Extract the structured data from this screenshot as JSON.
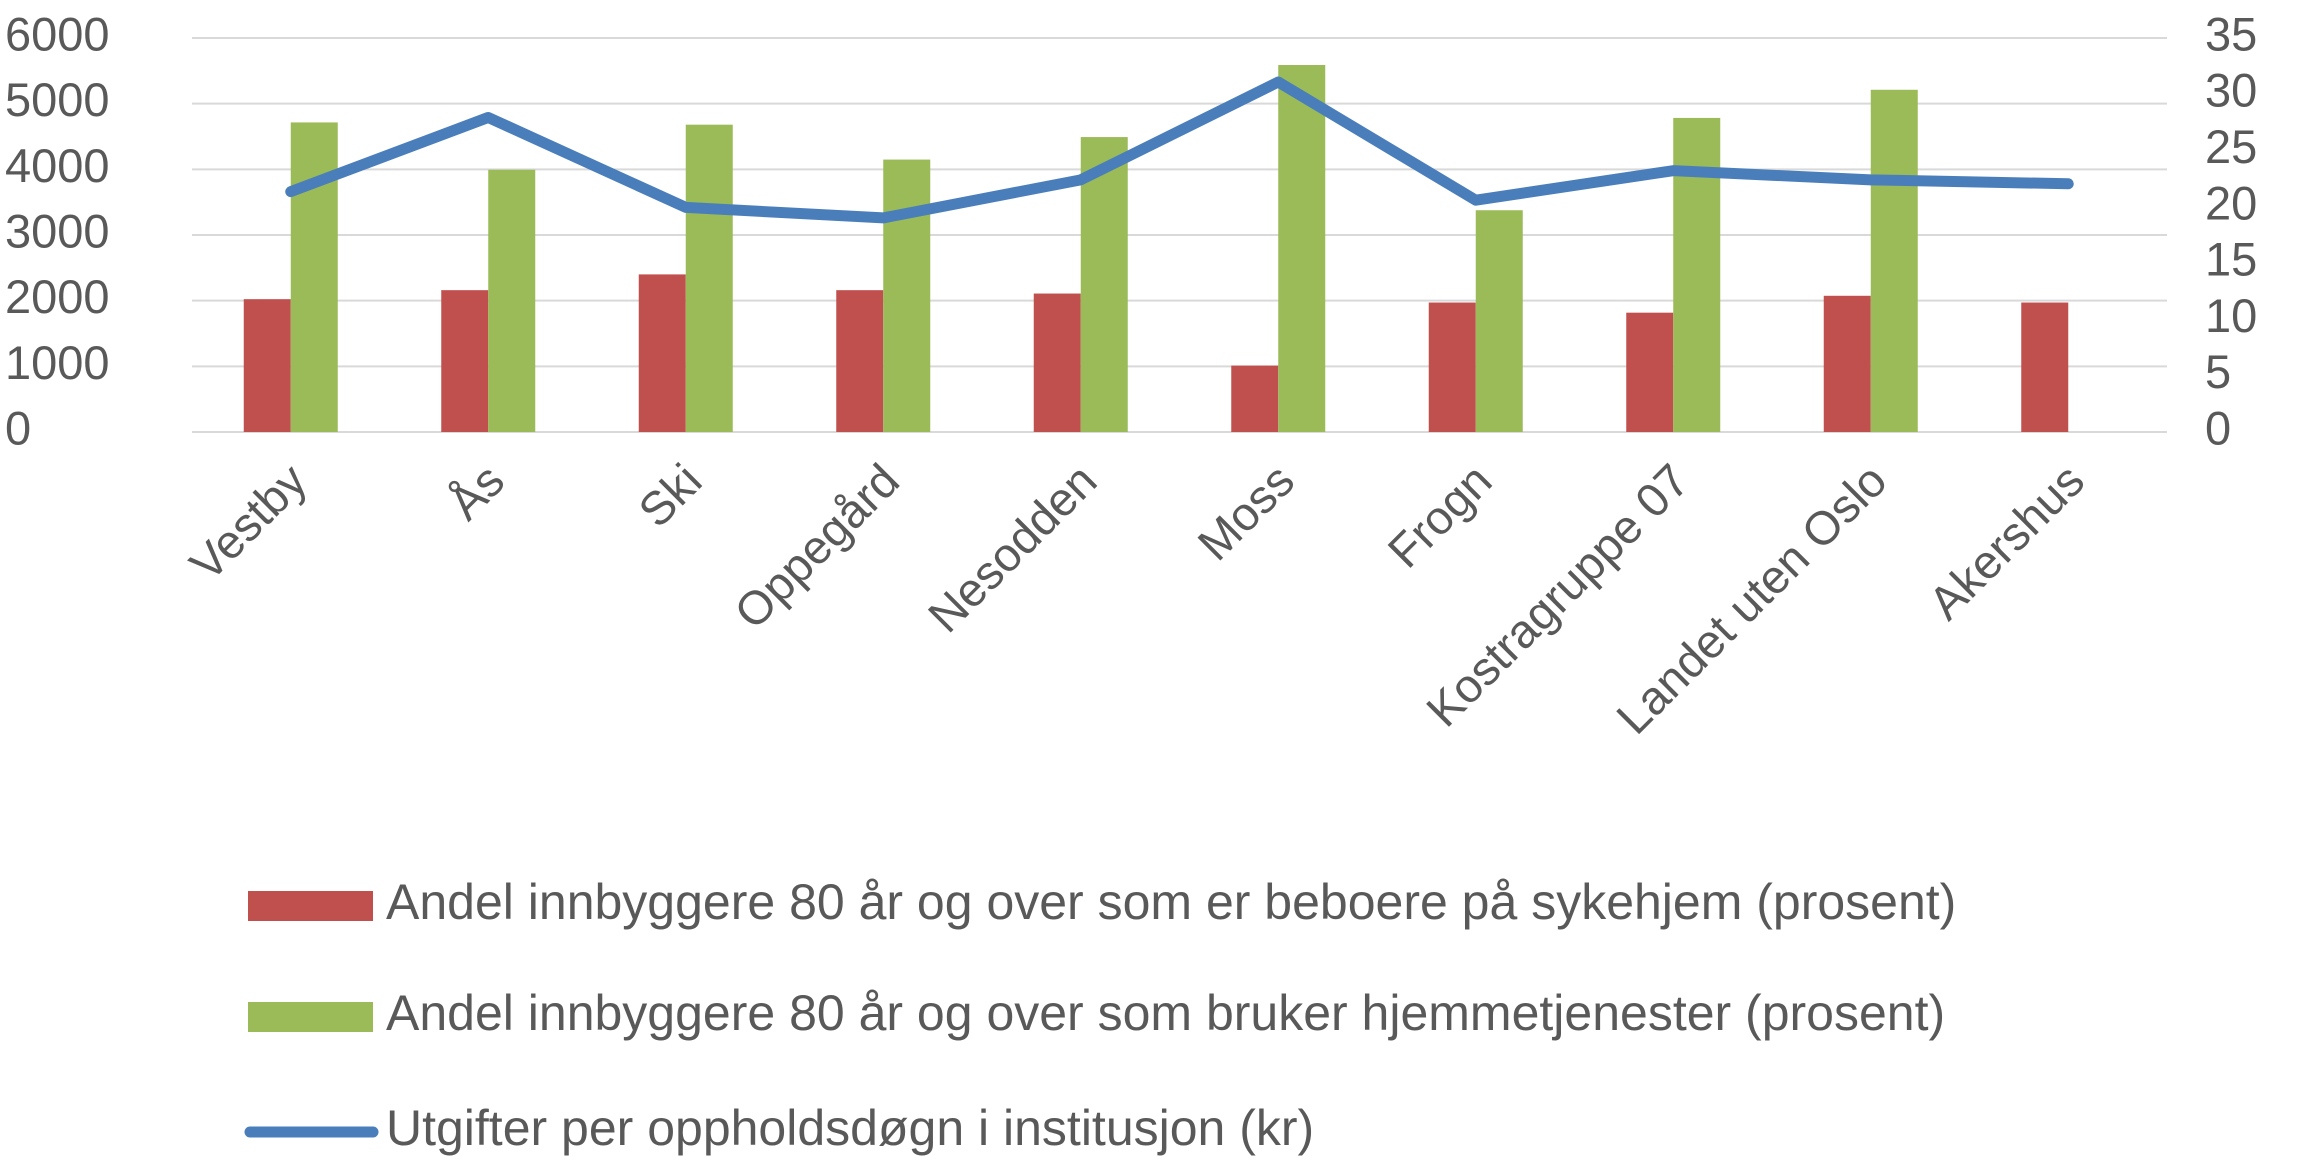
{
  "chart_data": {
    "type": "bar_line",
    "categories": [
      "Vestby",
      "Ås",
      "Ski",
      "Oppegård",
      "Nesodden",
      "Moss",
      "Frogn",
      "Kostragruppe 07",
      "Landet uten Oslo",
      "Akershus"
    ],
    "series": [
      {
        "name": "Andel innbyggere 80 år og over som er beboere på sykehjem (prosent)",
        "color": "#c0504d",
        "type": "bar",
        "axis": "y2",
        "values": [
          11.8,
          12.6,
          14.0,
          12.6,
          12.3,
          5.9,
          11.5,
          10.6,
          12.1,
          11.5
        ]
      },
      {
        "name": "Andel innbyggere 80 år og over som bruker hjemmetjenester (prosent)",
        "color": "#9bbb59",
        "type": "bar",
        "axis": "y2",
        "values": [
          27.5,
          23.3,
          27.3,
          24.2,
          26.2,
          32.6,
          19.7,
          27.9,
          30.4,
          null
        ]
      },
      {
        "name": "Utgifter per oppholdsdøgn i institusjon (kr)",
        "color": "#4a7ebb",
        "type": "line",
        "axis": "y",
        "values": [
          3660,
          4790,
          3420,
          3260,
          3840,
          5330,
          3530,
          3980,
          3840,
          3780
        ]
      }
    ],
    "ylim": [
      0,
      6000
    ],
    "yticks": [
      0,
      1000,
      2000,
      3000,
      4000,
      5000,
      6000
    ],
    "y2lim": [
      0,
      35
    ],
    "y2ticks": [
      0,
      5,
      10,
      15,
      20,
      25,
      30,
      35
    ],
    "grid": true,
    "legend": "bottom"
  }
}
